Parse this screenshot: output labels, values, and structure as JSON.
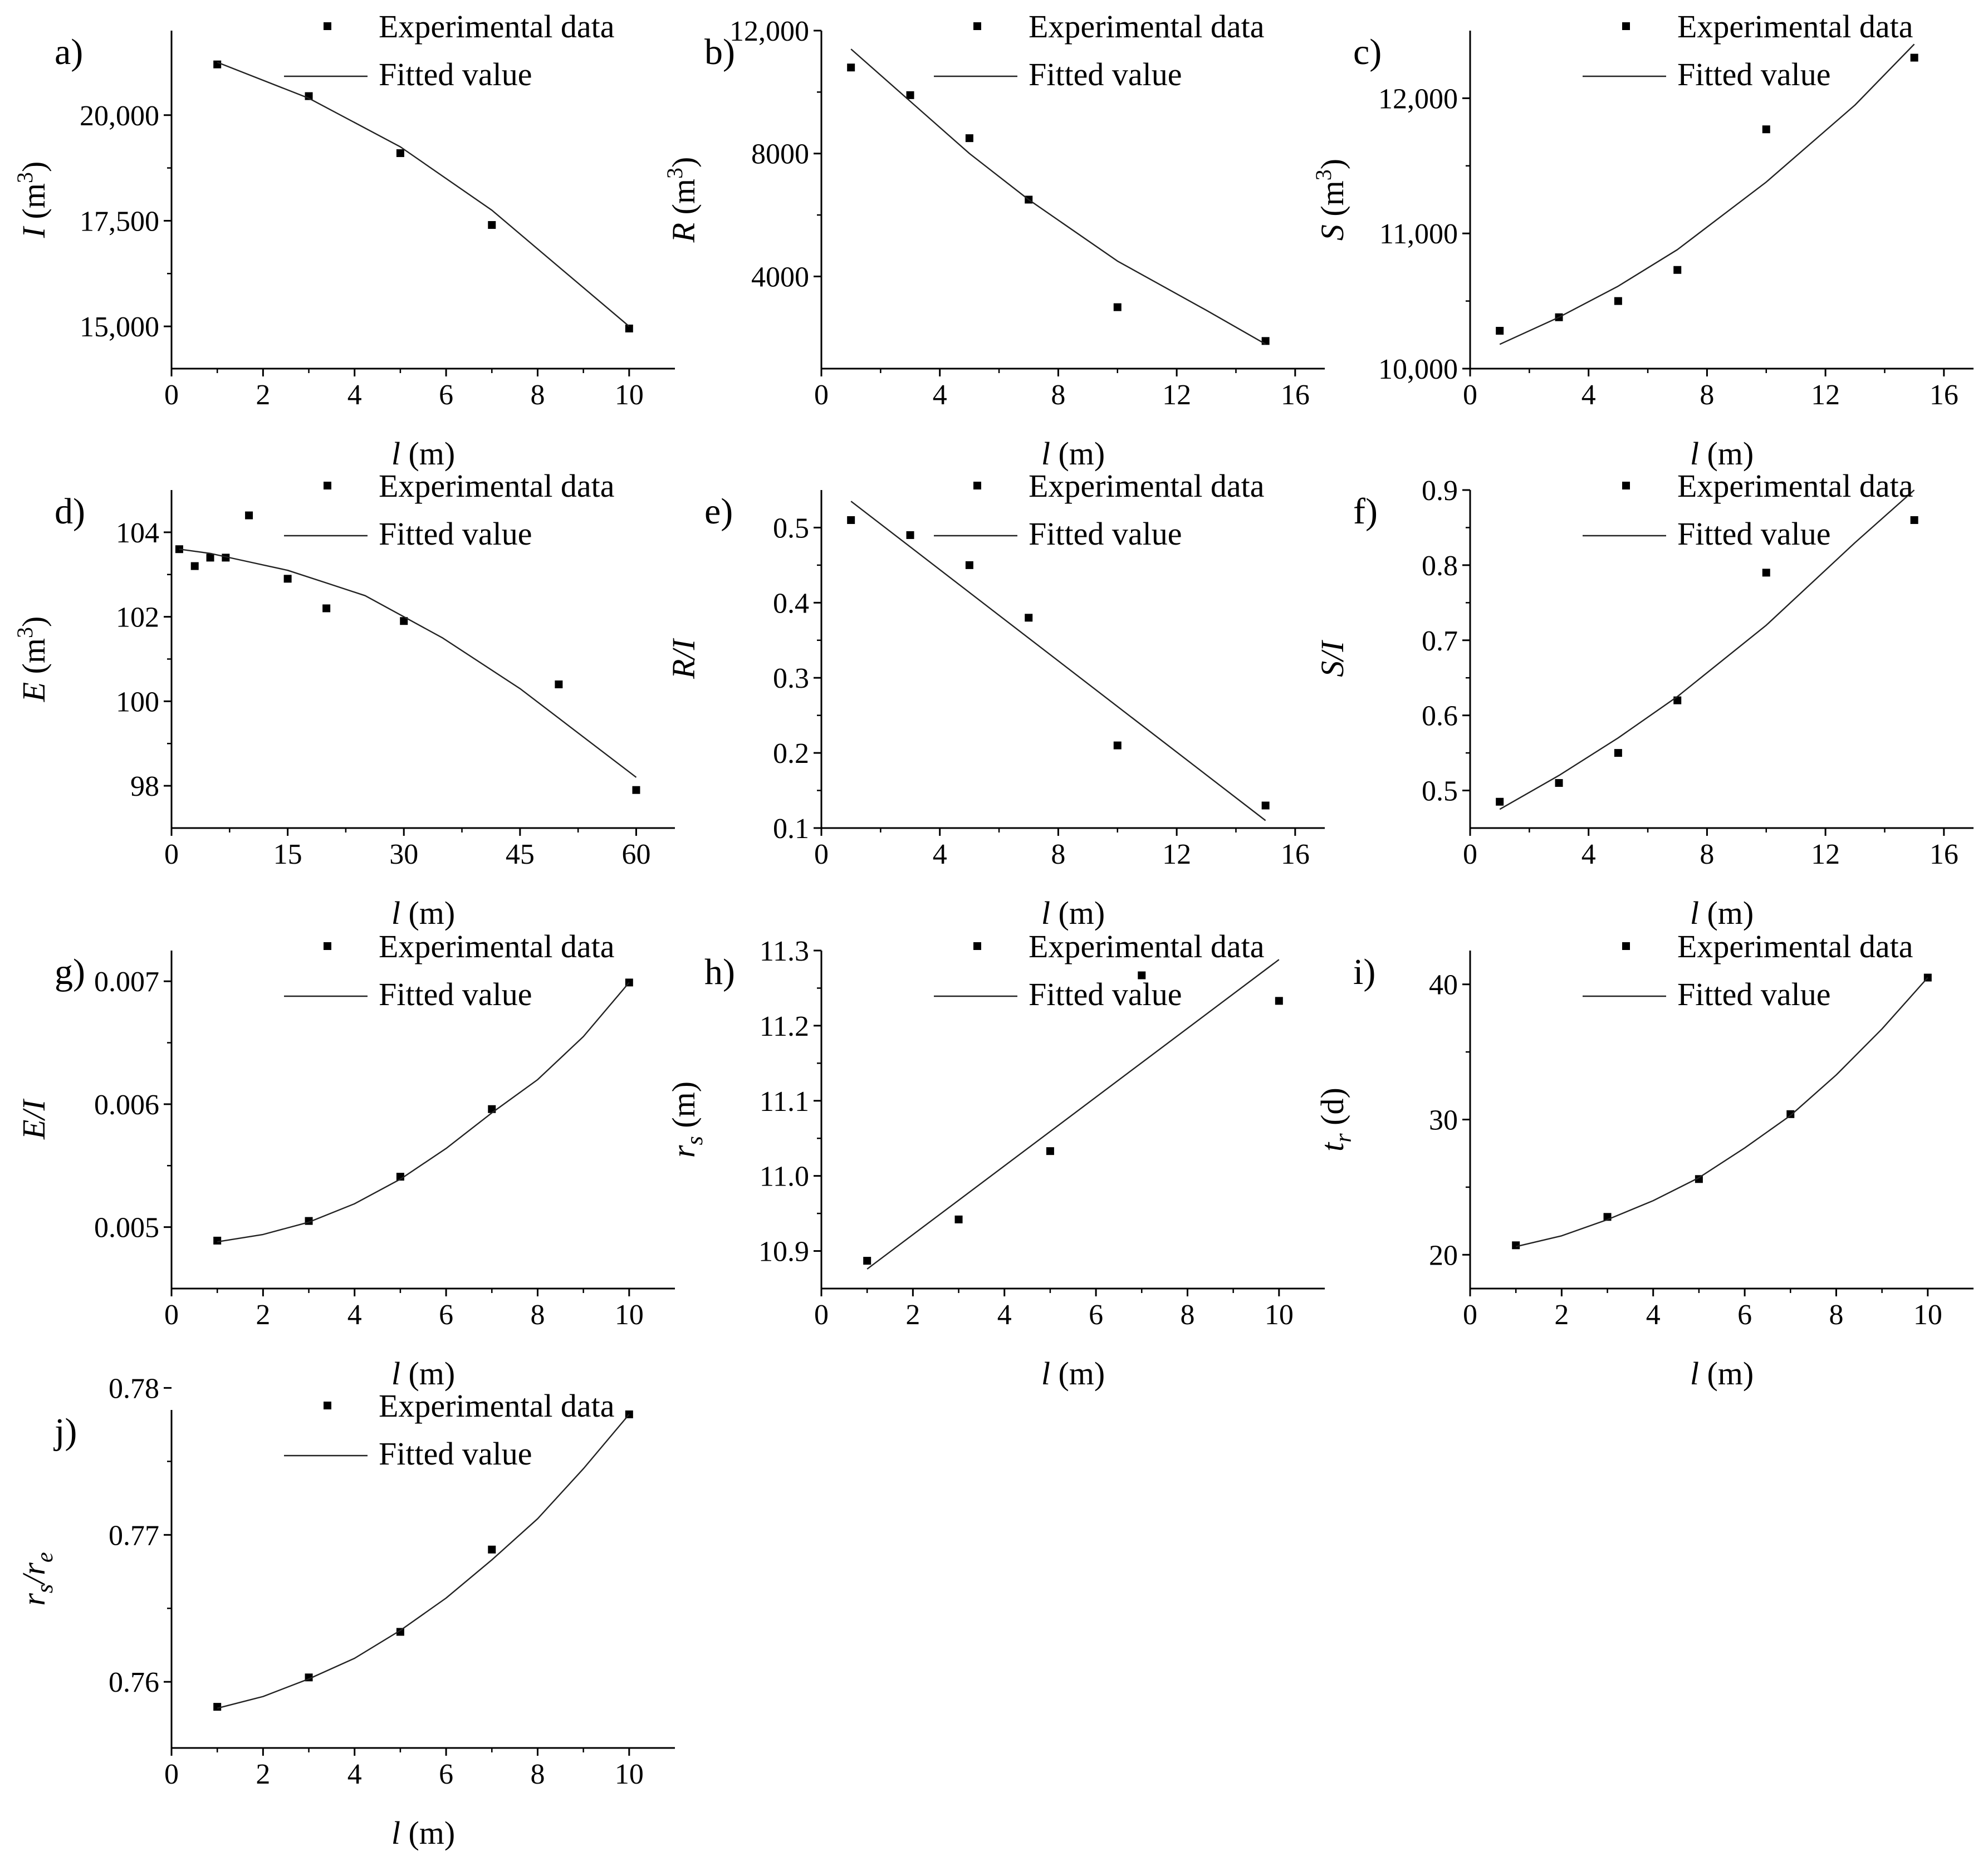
{
  "chart_data": [
    {
      "id": "a",
      "type": "scatter",
      "panel_label": "a)",
      "xlabel": {
        "var": "l",
        "unit": " (m)"
      },
      "ylabel": {
        "var": "I",
        "unit": " (m",
        "sup": "3",
        "tail": ")"
      },
      "xlim": [
        0,
        11
      ],
      "ylim": [
        14000,
        22000
      ],
      "xticks": [
        0,
        2,
        4,
        6,
        8,
        10
      ],
      "xtick_labels": [
        "0",
        "2",
        "4",
        "6",
        "8",
        "10"
      ],
      "yticks": [
        15000,
        17500,
        20000
      ],
      "ytick_labels": [
        "15,000",
        "17,500",
        "20,000"
      ],
      "series": [
        {
          "name": "Experimental data",
          "kind": "points",
          "x": [
            1,
            3,
            5,
            7,
            10
          ],
          "y": [
            21200,
            20450,
            19100,
            17400,
            14950
          ]
        },
        {
          "name": "Fitted value",
          "kind": "line",
          "x": [
            1,
            3,
            5,
            7,
            10
          ],
          "y": [
            21250,
            20400,
            19250,
            17750,
            15000
          ]
        }
      ]
    },
    {
      "id": "b",
      "type": "scatter",
      "panel_label": "b)",
      "xlabel": {
        "var": "l",
        "unit": " (m)"
      },
      "ylabel": {
        "var": "R",
        "unit": " (m",
        "sup": "3",
        "tail": ")"
      },
      "xlim": [
        0,
        17
      ],
      "ylim": [
        1000,
        12000
      ],
      "xticks": [
        0,
        4,
        8,
        12,
        16
      ],
      "xtick_labels": [
        "0",
        "4",
        "8",
        "12",
        "16"
      ],
      "yticks": [
        4000,
        8000,
        12000
      ],
      "ytick_labels": [
        "4000",
        "8000",
        "12,000"
      ],
      "series": [
        {
          "name": "Experimental data",
          "kind": "points",
          "x": [
            1,
            3,
            5,
            7,
            10,
            15
          ],
          "y": [
            10800,
            9900,
            8500,
            6500,
            3000,
            1900
          ]
        },
        {
          "name": "Fitted value",
          "kind": "line",
          "x": [
            1,
            3,
            5,
            7,
            10,
            13,
            15
          ],
          "y": [
            11400,
            9700,
            8000,
            6500,
            4500,
            2900,
            1800
          ]
        }
      ]
    },
    {
      "id": "c",
      "type": "scatter",
      "panel_label": "c)",
      "xlabel": {
        "var": "l",
        "unit": " (m)"
      },
      "ylabel": {
        "var": "S",
        "unit": " (m",
        "sup": "3",
        "tail": ")"
      },
      "xlim": [
        0,
        17
      ],
      "ylim": [
        10000,
        12500
      ],
      "xticks": [
        0,
        4,
        8,
        12,
        16
      ],
      "xtick_labels": [
        "0",
        "4",
        "8",
        "12",
        "16"
      ],
      "yticks": [
        10000,
        11000,
        12000
      ],
      "ytick_labels": [
        "10,000",
        "11,000",
        "12,000"
      ],
      "series": [
        {
          "name": "Experimental data",
          "kind": "points",
          "x": [
            1,
            3,
            5,
            7,
            10,
            15
          ],
          "y": [
            10280,
            10380,
            10500,
            10730,
            11770,
            12300
          ]
        },
        {
          "name": "Fitted value",
          "kind": "line",
          "x": [
            1,
            3,
            5,
            7,
            10,
            13,
            15
          ],
          "y": [
            10180,
            10380,
            10610,
            10880,
            11380,
            11950,
            12400
          ]
        }
      ]
    },
    {
      "id": "d",
      "type": "scatter",
      "panel_label": "d)",
      "xlabel": {
        "var": "l",
        "unit": " (m)"
      },
      "ylabel": {
        "var": "E",
        "unit": " (m",
        "sup": "3",
        "tail": ")"
      },
      "xlim": [
        0,
        65
      ],
      "ylim": [
        97,
        105
      ],
      "xticks": [
        0,
        15,
        30,
        45,
        60
      ],
      "xtick_labels": [
        "0",
        "15",
        "30",
        "45",
        "60"
      ],
      "yticks": [
        98,
        100,
        102,
        104
      ],
      "ytick_labels": [
        "98",
        "100",
        "102",
        "104"
      ],
      "series": [
        {
          "name": "Experimental data",
          "kind": "points",
          "x": [
            1,
            3,
            5,
            7,
            10,
            15,
            20,
            30,
            50,
            60
          ],
          "y": [
            103.6,
            103.2,
            103.4,
            103.4,
            104.4,
            102.9,
            102.2,
            101.9,
            100.4,
            97.9
          ]
        },
        {
          "name": "Fitted value",
          "kind": "line",
          "x": [
            1,
            5,
            10,
            15,
            20,
            25,
            30,
            35,
            40,
            45,
            50,
            55,
            60
          ],
          "y": [
            103.6,
            103.5,
            103.3,
            103.1,
            102.8,
            102.5,
            102.0,
            101.5,
            100.9,
            100.3,
            99.6,
            98.9,
            98.2
          ]
        }
      ]
    },
    {
      "id": "e",
      "type": "scatter",
      "panel_label": "e)",
      "xlabel": {
        "var": "l",
        "unit": " (m)"
      },
      "ylabel": {
        "var": "R/I",
        "unit": "",
        "sup": "",
        "tail": ""
      },
      "xlim": [
        0,
        17
      ],
      "ylim": [
        0.1,
        0.55
      ],
      "xticks": [
        0,
        4,
        8,
        12,
        16
      ],
      "xtick_labels": [
        "0",
        "4",
        "8",
        "12",
        "16"
      ],
      "yticks": [
        0.1,
        0.2,
        0.3,
        0.4,
        0.5
      ],
      "ytick_labels": [
        "0.1",
        "0.2",
        "0.3",
        "0.4",
        "0.5"
      ],
      "series": [
        {
          "name": "Experimental data",
          "kind": "points",
          "x": [
            1,
            3,
            5,
            7,
            10,
            15
          ],
          "y": [
            0.51,
            0.49,
            0.45,
            0.38,
            0.21,
            0.13
          ]
        },
        {
          "name": "Fitted value",
          "kind": "line",
          "x": [
            1,
            15
          ],
          "y": [
            0.535,
            0.11
          ]
        }
      ]
    },
    {
      "id": "f",
      "type": "scatter",
      "panel_label": "f)",
      "xlabel": {
        "var": "l",
        "unit": " (m)"
      },
      "ylabel": {
        "var": "S/I",
        "unit": "",
        "sup": "",
        "tail": ""
      },
      "xlim": [
        0,
        17
      ],
      "ylim": [
        0.45,
        0.9
      ],
      "xticks": [
        0,
        4,
        8,
        12,
        16
      ],
      "xtick_labels": [
        "0",
        "4",
        "8",
        "12",
        "16"
      ],
      "yticks": [
        0.5,
        0.6,
        0.7,
        0.8,
        0.9
      ],
      "ytick_labels": [
        "0.5",
        "0.6",
        "0.7",
        "0.8",
        "0.9"
      ],
      "series": [
        {
          "name": "Experimental data",
          "kind": "points",
          "x": [
            1,
            3,
            5,
            7,
            10,
            15
          ],
          "y": [
            0.485,
            0.51,
            0.55,
            0.62,
            0.79,
            0.86
          ]
        },
        {
          "name": "Fitted value",
          "kind": "line",
          "x": [
            1,
            3,
            5,
            7,
            10,
            13,
            15
          ],
          "y": [
            0.475,
            0.52,
            0.57,
            0.625,
            0.72,
            0.83,
            0.9
          ]
        }
      ]
    },
    {
      "id": "g",
      "type": "scatter",
      "panel_label": "g)",
      "xlabel": {
        "var": "l",
        "unit": " (m)"
      },
      "ylabel": {
        "var": "E/I",
        "unit": "",
        "sup": "",
        "tail": ""
      },
      "xlim": [
        0,
        11
      ],
      "ylim": [
        0.0045,
        0.00725
      ],
      "xticks": [
        0,
        2,
        4,
        6,
        8,
        10
      ],
      "xtick_labels": [
        "0",
        "2",
        "4",
        "6",
        "8",
        "10"
      ],
      "yticks": [
        0.005,
        0.006,
        0.007
      ],
      "ytick_labels": [
        "0.005",
        "0.006",
        "0.007"
      ],
      "series": [
        {
          "name": "Experimental data",
          "kind": "points",
          "x": [
            1,
            3,
            5,
            7,
            10
          ],
          "y": [
            0.00489,
            0.00505,
            0.00541,
            0.00596,
            0.00699
          ]
        },
        {
          "name": "Fitted value",
          "kind": "line",
          "x": [
            1,
            2,
            3,
            4,
            5,
            6,
            7,
            8,
            9,
            10
          ],
          "y": [
            0.00488,
            0.00494,
            0.00504,
            0.00519,
            0.00539,
            0.00564,
            0.00593,
            0.0062,
            0.00655,
            0.00699
          ]
        }
      ]
    },
    {
      "id": "h",
      "type": "scatter",
      "panel_label": "h)",
      "xlabel": {
        "var": "l",
        "unit": " (m)"
      },
      "ylabel": {
        "var": "r",
        "sub": "s",
        "unit": " (m)",
        "sup": "",
        "tail": ""
      },
      "xlim": [
        0,
        11
      ],
      "ylim": [
        10.85,
        11.3
      ],
      "xticks": [
        0,
        2,
        4,
        6,
        8,
        10
      ],
      "xtick_labels": [
        "0",
        "2",
        "4",
        "6",
        "8",
        "10"
      ],
      "yticks": [
        10.9,
        11.0,
        11.1,
        11.2,
        11.3
      ],
      "ytick_labels": [
        "10.9",
        "11.0",
        "11.1",
        "11.2",
        "11.3"
      ],
      "series": [
        {
          "name": "Experimental data",
          "kind": "points",
          "x": [
            1,
            3,
            5,
            7,
            10
          ],
          "y": [
            10.887,
            10.942,
            11.033,
            11.267,
            11.233
          ]
        },
        {
          "name": "Fitted value",
          "kind": "line",
          "x": [
            1,
            10
          ],
          "y": [
            10.876,
            11.288
          ]
        }
      ]
    },
    {
      "id": "i",
      "type": "scatter",
      "panel_label": "i)",
      "xlabel": {
        "var": "l",
        "unit": " (m)"
      },
      "ylabel": {
        "var": "t",
        "sub": "r",
        "unit": " (d)",
        "sup": "",
        "tail": ""
      },
      "xlim": [
        0,
        11
      ],
      "ylim": [
        17.5,
        42.5
      ],
      "xticks": [
        0,
        2,
        4,
        6,
        8,
        10
      ],
      "xtick_labels": [
        "0",
        "2",
        "4",
        "6",
        "8",
        "10"
      ],
      "yticks": [
        20,
        30,
        40
      ],
      "ytick_labels": [
        "20",
        "30",
        "40"
      ],
      "series": [
        {
          "name": "Experimental data",
          "kind": "points",
          "x": [
            1,
            3,
            5,
            7,
            10
          ],
          "y": [
            20.7,
            22.8,
            25.6,
            30.4,
            40.5
          ]
        },
        {
          "name": "Fitted value",
          "kind": "line",
          "x": [
            1,
            2,
            3,
            4,
            5,
            6,
            7,
            8,
            9,
            10
          ],
          "y": [
            20.6,
            21.4,
            22.6,
            24.0,
            25.7,
            27.9,
            30.3,
            33.3,
            36.7,
            40.5
          ]
        }
      ]
    },
    {
      "id": "j",
      "type": "scatter",
      "panel_label": "j)",
      "xlabel": {
        "var": "l",
        "unit": " (m)"
      },
      "ylabel": {
        "var": "r",
        "sub": "s",
        "mid": "/r",
        "sub2": "e",
        "unit": "",
        "sup": "",
        "tail": ""
      },
      "xlim": [
        0,
        11
      ],
      "ylim": [
        0.7555,
        0.7785
      ],
      "xticks": [
        0,
        2,
        4,
        6,
        8,
        10
      ],
      "xtick_labels": [
        "0",
        "2",
        "4",
        "6",
        "8",
        "10"
      ],
      "yticks": [
        0.76,
        0.77,
        0.78
      ],
      "ytick_labels": [
        "0.76",
        "0.77",
        "0.78"
      ],
      "series": [
        {
          "name": "Experimental data",
          "kind": "points",
          "x": [
            1,
            3,
            5,
            7,
            10
          ],
          "y": [
            0.7583,
            0.7603,
            0.7634,
            0.769,
            0.7782
          ]
        },
        {
          "name": "Fitted value",
          "kind": "line",
          "x": [
            1,
            2,
            3,
            4,
            5,
            6,
            7,
            8,
            9,
            10
          ],
          "y": [
            0.7582,
            0.759,
            0.7602,
            0.7616,
            0.7635,
            0.7657,
            0.7683,
            0.7711,
            0.7745,
            0.7782
          ]
        }
      ]
    }
  ]
}
